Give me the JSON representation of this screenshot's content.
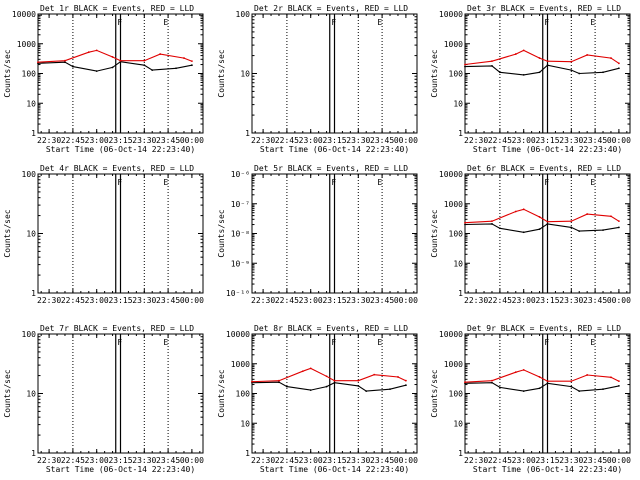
{
  "chart_data": [
    {
      "type": "line",
      "title": "Det 1r BLACK = Events, RED = LLD",
      "xlabel": "Start Time (06-Oct-14 22:23:40)",
      "ylabel": "Counts/sec",
      "yscale": "log",
      "ylim": [
        1,
        10000
      ],
      "yticks": [
        "1",
        "10",
        "100",
        "1000",
        "10000"
      ],
      "xticks": [
        "22:30",
        "22:45",
        "23:00",
        "23:15",
        "23:30",
        "23:45",
        "00:00"
      ],
      "markers": [
        "F",
        "E"
      ],
      "series": [
        {
          "color": "#000000",
          "x": [
            "22:23",
            "22:40",
            "22:45",
            "23:00",
            "23:10",
            "23:15",
            "23:30",
            "23:35",
            "23:50",
            "00:00"
          ],
          "values": [
            220,
            240,
            170,
            120,
            160,
            250,
            190,
            130,
            150,
            190
          ]
        },
        {
          "color": "#e00000",
          "x": [
            "22:23",
            "22:40",
            "22:55",
            "23:00",
            "23:10",
            "23:15",
            "23:30",
            "23:40",
            "23:55",
            "00:00"
          ],
          "values": [
            240,
            270,
            520,
            600,
            360,
            270,
            270,
            450,
            330,
            260
          ]
        }
      ]
    },
    {
      "type": "line",
      "title": "Det 2r BLACK = Events, RED = LLD",
      "xlabel": "Start Time (06-Oct-14 22:23:40)",
      "ylabel": "Counts/sec",
      "yscale": "log",
      "ylim": [
        1,
        100
      ],
      "yticks": [
        "1",
        "10",
        "100"
      ],
      "xticks": [
        "22:30",
        "22:45",
        "23:00",
        "23:15",
        "23:30",
        "23:45",
        "00:00"
      ],
      "markers": [
        "F",
        "E"
      ],
      "series": []
    },
    {
      "type": "line",
      "title": "Det 3r BLACK = Events, RED = LLD",
      "xlabel": "Start Time (06-Oct-14 22:23:40)",
      "ylabel": "Counts/sec",
      "yscale": "log",
      "ylim": [
        1,
        10000
      ],
      "yticks": [
        "1",
        "10",
        "100",
        "1000",
        "10000"
      ],
      "xticks": [
        "22:30",
        "22:45",
        "23:00",
        "23:15",
        "23:30",
        "23:45",
        "00:00"
      ],
      "markers": [
        "F",
        "E"
      ],
      "series": [
        {
          "color": "#000000",
          "x": [
            "22:23",
            "22:40",
            "22:45",
            "23:00",
            "23:10",
            "23:15",
            "23:30",
            "23:35",
            "23:50",
            "00:00"
          ],
          "values": [
            170,
            180,
            110,
            90,
            110,
            190,
            130,
            100,
            110,
            150
          ]
        },
        {
          "color": "#e00000",
          "x": [
            "22:23",
            "22:40",
            "22:55",
            "23:00",
            "23:10",
            "23:15",
            "23:30",
            "23:40",
            "23:55",
            "00:00"
          ],
          "values": [
            200,
            260,
            450,
            600,
            330,
            260,
            250,
            420,
            330,
            220
          ]
        }
      ]
    },
    {
      "type": "line",
      "title": "Det 4r BLACK = Events, RED = LLD",
      "xlabel": "",
      "ylabel": "Counts/sec",
      "yscale": "log",
      "ylim": [
        1,
        100
      ],
      "yticks": [
        "1",
        "10",
        "100"
      ],
      "xticks": [
        "22:30",
        "22:45",
        "23:00",
        "23:15",
        "23:30",
        "23:45",
        "00:00"
      ],
      "markers": [
        "F",
        "E"
      ],
      "series": []
    },
    {
      "type": "line",
      "title": "Det 5r BLACK = Events, RED = LLD",
      "xlabel": "",
      "ylabel": "Counts/sec",
      "yscale": "log",
      "ylim": [
        1e-10,
        1e-06
      ],
      "yticks": [
        "10⁻¹⁰",
        "10⁻⁹",
        "10⁻⁸",
        "10⁻⁷",
        "10⁻⁶"
      ],
      "xticks": [
        "22:30",
        "22:45",
        "23:00",
        "23:15",
        "23:30",
        "23:45",
        "00:00"
      ],
      "markers": [
        "F",
        "E"
      ],
      "series": []
    },
    {
      "type": "line",
      "title": "Det 6r BLACK = Events, RED = LLD",
      "xlabel": "",
      "ylabel": "Counts/sec",
      "yscale": "log",
      "ylim": [
        1,
        10000
      ],
      "yticks": [
        "1",
        "10",
        "100",
        "1000",
        "10000"
      ],
      "xticks": [
        "22:30",
        "22:45",
        "23:00",
        "23:15",
        "23:30",
        "23:45",
        "00:00"
      ],
      "markers": [
        "F",
        "E"
      ],
      "series": [
        {
          "color": "#000000",
          "x": [
            "22:23",
            "22:40",
            "22:45",
            "23:00",
            "23:10",
            "23:15",
            "23:30",
            "23:35",
            "23:50",
            "00:00"
          ],
          "values": [
            200,
            210,
            150,
            110,
            140,
            210,
            160,
            120,
            130,
            160
          ]
        },
        {
          "color": "#e00000",
          "x": [
            "22:23",
            "22:40",
            "22:55",
            "23:00",
            "23:10",
            "23:15",
            "23:30",
            "23:40",
            "23:55",
            "00:00"
          ],
          "values": [
            230,
            260,
            550,
            650,
            360,
            250,
            260,
            450,
            380,
            260
          ]
        }
      ]
    },
    {
      "type": "line",
      "title": "Det 7r BLACK = Events, RED = LLD",
      "xlabel": "Start Time (06-Oct-14 22:23:40)",
      "ylabel": "Counts/sec",
      "yscale": "log",
      "ylim": [
        1,
        100
      ],
      "yticks": [
        "1",
        "10",
        "100"
      ],
      "xticks": [
        "22:30",
        "22:45",
        "23:00",
        "23:15",
        "23:30",
        "23:45",
        "00:00"
      ],
      "markers": [
        "F",
        "E"
      ],
      "series": []
    },
    {
      "type": "line",
      "title": "Det 8r BLACK = Events, RED = LLD",
      "xlabel": "Start Time (06-Oct-14 22:23:40)",
      "ylabel": "Counts/sec",
      "yscale": "log",
      "ylim": [
        1,
        10000
      ],
      "yticks": [
        "1",
        "10",
        "100",
        "1000",
        "10000"
      ],
      "xticks": [
        "22:30",
        "22:45",
        "23:00",
        "23:15",
        "23:30",
        "23:45",
        "00:00"
      ],
      "markers": [
        "F",
        "E"
      ],
      "series": [
        {
          "color": "#000000",
          "x": [
            "22:23",
            "22:40",
            "22:45",
            "23:00",
            "23:10",
            "23:15",
            "23:30",
            "23:35",
            "23:50",
            "00:00"
          ],
          "values": [
            230,
            240,
            170,
            130,
            170,
            230,
            180,
            120,
            140,
            190
          ]
        },
        {
          "color": "#e00000",
          "x": [
            "22:23",
            "22:40",
            "22:55",
            "23:00",
            "23:10",
            "23:15",
            "23:30",
            "23:40",
            "23:55",
            "00:00"
          ],
          "values": [
            250,
            270,
            560,
            700,
            380,
            270,
            270,
            430,
            360,
            270
          ]
        }
      ]
    },
    {
      "type": "line",
      "title": "Det 9r BLACK = Events, RED = LLD",
      "xlabel": "Start Time (06-Oct-14 22:23:40)",
      "ylabel": "Counts/sec",
      "yscale": "log",
      "ylim": [
        1,
        10000
      ],
      "yticks": [
        "1",
        "10",
        "100",
        "1000",
        "10000"
      ],
      "xticks": [
        "22:30",
        "22:45",
        "23:00",
        "23:15",
        "23:30",
        "23:45",
        "00:00"
      ],
      "markers": [
        "F",
        "E"
      ],
      "series": [
        {
          "color": "#000000",
          "x": [
            "22:23",
            "22:40",
            "22:45",
            "23:00",
            "23:10",
            "23:15",
            "23:30",
            "23:35",
            "23:50",
            "00:00"
          ],
          "values": [
            220,
            230,
            160,
            120,
            150,
            220,
            170,
            120,
            140,
            180
          ]
        },
        {
          "color": "#e00000",
          "x": [
            "22:23",
            "22:40",
            "22:55",
            "23:00",
            "23:10",
            "23:15",
            "23:30",
            "23:40",
            "23:55",
            "00:00"
          ],
          "values": [
            240,
            270,
            520,
            620,
            360,
            260,
            260,
            420,
            350,
            260
          ]
        }
      ]
    }
  ]
}
